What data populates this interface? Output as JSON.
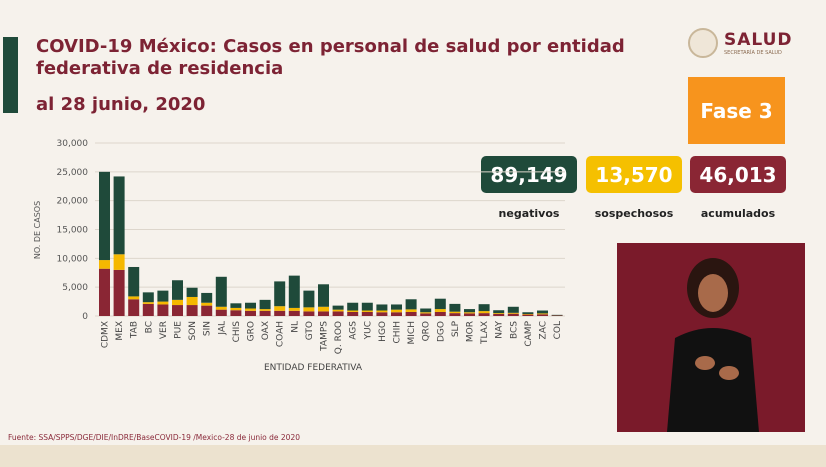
{
  "title": "COVID-19 México: Casos en personal de salud por entidad federativa de residencia",
  "subtitle": "al 28 junio, 2020",
  "logo": {
    "text": "SALUD",
    "subtext": "SECRETARÍA DE SALUD"
  },
  "phase": "Fase 3",
  "cards": [
    {
      "value": "89,149",
      "label": "negativos",
      "color": "#1f4a3a"
    },
    {
      "value": "13,570",
      "label": "sospechosos",
      "color": "#f5c000"
    },
    {
      "value": "46,013",
      "label": "acumulados",
      "color": "#8a2634"
    }
  ],
  "footer": "Fuente: SSA/SPPS/DGE/DIE/InDRE/BaseCOVID-19 /Mexico-28 de junio de 2020",
  "colors": {
    "negativos": "#1f4a3a",
    "sospechosos": "#f5b800",
    "acumulados": "#8a2634",
    "phase": "#f7941d"
  },
  "chart_data": {
    "type": "bar",
    "stacked": true,
    "xlabel": "ENTIDAD FEDERATIVA",
    "ylabel": "NO. DE CASOS",
    "ylim": [
      0,
      30000
    ],
    "yticks": [
      "0",
      "5,000",
      "10,000",
      "15,000",
      "20,000",
      "25,000",
      "30,000"
    ],
    "grid": true,
    "categories": [
      "CDMX",
      "MEX",
      "TAB",
      "BC",
      "VER",
      "PUE",
      "SON",
      "SIN",
      "JAL",
      "CHIS",
      "GRO",
      "OAX",
      "COAH",
      "NL",
      "GTO",
      "TAMPS",
      "Q. ROO",
      "AGS",
      "YUC",
      "HGO",
      "CHIH",
      "MICH",
      "QRO",
      "DGO",
      "SLP",
      "MOR",
      "TLAX",
      "NAY",
      "BCS",
      "CAMP",
      "ZAC",
      "COL"
    ],
    "series": [
      {
        "key": "acumulados",
        "values": [
          8200,
          8000,
          2900,
          2100,
          2000,
          1900,
          1900,
          1800,
          1100,
          1000,
          900,
          900,
          900,
          900,
          800,
          800,
          800,
          700,
          700,
          650,
          650,
          700,
          450,
          700,
          500,
          450,
          500,
          350,
          400,
          250,
          300,
          80
        ]
      },
      {
        "key": "sospechosos",
        "values": [
          1500,
          2700,
          500,
          300,
          500,
          900,
          1400,
          500,
          500,
          400,
          400,
          300,
          800,
          500,
          700,
          800,
          300,
          250,
          250,
          300,
          450,
          450,
          200,
          500,
          250,
          200,
          350,
          150,
          150,
          100,
          150,
          20
        ]
      },
      {
        "key": "negativos",
        "values": [
          15300,
          13500,
          5100,
          1700,
          1900,
          3400,
          1600,
          1700,
          5200,
          800,
          1000,
          1600,
          4300,
          5600,
          2900,
          3900,
          700,
          1350,
          1350,
          1050,
          900,
          1750,
          650,
          1800,
          1350,
          550,
          1200,
          500,
          1050,
          300,
          500,
          100
        ]
      }
    ]
  }
}
